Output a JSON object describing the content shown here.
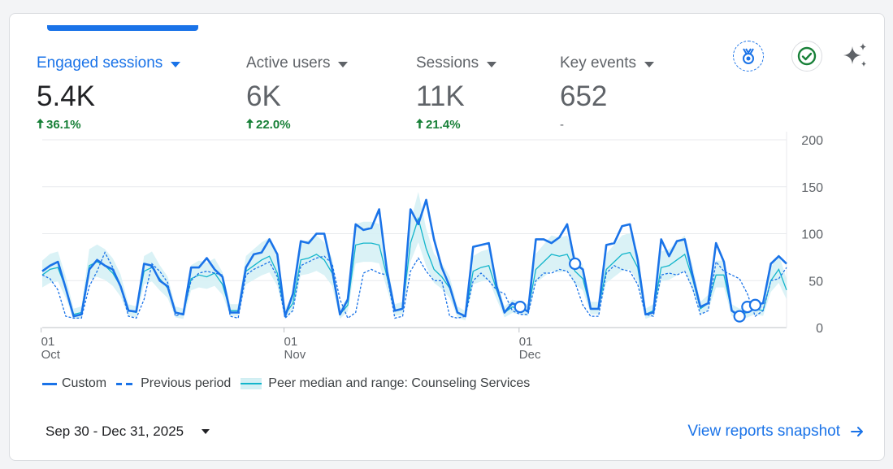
{
  "metrics": [
    {
      "label": "Engaged sessions",
      "value": "5.4K",
      "change": "36.1%",
      "active": true
    },
    {
      "label": "Active users",
      "value": "6K",
      "change": "22.0%",
      "active": false
    },
    {
      "label": "Sessions",
      "value": "11K",
      "change": "21.4%",
      "active": false
    },
    {
      "label": "Key events",
      "value": "652",
      "change": "-",
      "active": false
    }
  ],
  "icons": {
    "badge": "medal-icon",
    "check": "check-circle-icon",
    "sparkle": "sparkle-icon"
  },
  "colors": {
    "primary": "#1a73e8",
    "peer": "#12b5cb",
    "peer_band": "#d4f0f4",
    "positive": "#188038"
  },
  "legend": {
    "custom": "Custom",
    "previous": "Previous period",
    "peer": "Peer median and range: Counseling Services"
  },
  "footer": {
    "date_range": "Sep 30 - Dec 31, 2025",
    "view_link": "View reports snapshot"
  },
  "chart_data": {
    "type": "line",
    "ylim": [
      0,
      200
    ],
    "y_ticks": [
      0,
      50,
      100,
      150,
      200
    ],
    "x_ticks": [
      {
        "index": 1,
        "day": "01",
        "month": "Oct"
      },
      {
        "index": 32,
        "day": "01",
        "month": "Nov"
      },
      {
        "index": 62,
        "day": "01",
        "month": "Dec"
      }
    ],
    "series": [
      {
        "name": "Custom",
        "style": "solid",
        "values": [
          60,
          66,
          70,
          42,
          12,
          14,
          62,
          72,
          66,
          62,
          44,
          18,
          17,
          68,
          66,
          50,
          44,
          16,
          14,
          64,
          64,
          74,
          62,
          54,
          16,
          16,
          64,
          78,
          80,
          94,
          78,
          12,
          36,
          92,
          90,
          100,
          100,
          62,
          14,
          30,
          110,
          104,
          106,
          126,
          60,
          18,
          20,
          126,
          110,
          136,
          94,
          64,
          44,
          16,
          12,
          86,
          88,
          90,
          44,
          16,
          26,
          22,
          17,
          94,
          94,
          90,
          96,
          110,
          68,
          62,
          20,
          20,
          88,
          90,
          108,
          110,
          72,
          14,
          16,
          94,
          76,
          92,
          94,
          56,
          22,
          26,
          90,
          70,
          18,
          12,
          22,
          24,
          26,
          68,
          76,
          68
        ]
      },
      {
        "name": "Previous period",
        "style": "dashed",
        "values": [
          56,
          52,
          40,
          12,
          10,
          10,
          44,
          60,
          80,
          64,
          44,
          12,
          10,
          30,
          68,
          60,
          48,
          12,
          16,
          50,
          58,
          60,
          58,
          56,
          12,
          10,
          56,
          62,
          66,
          70,
          54,
          10,
          18,
          66,
          70,
          74,
          76,
          68,
          30,
          10,
          16,
          58,
          62,
          58,
          56,
          10,
          12,
          60,
          74,
          60,
          50,
          50,
          12,
          10,
          12,
          50,
          58,
          50,
          40,
          36,
          18,
          14,
          14,
          50,
          58,
          58,
          62,
          60,
          48,
          24,
          12,
          12,
          58,
          66,
          62,
          60,
          46,
          14,
          12,
          56,
          58,
          56,
          60,
          42,
          14,
          18,
          70,
          60,
          56,
          52,
          36,
          12,
          18,
          50,
          52,
          64
        ]
      },
      {
        "name": "Peer median",
        "style": "peer",
        "values": [
          56,
          62,
          64,
          42,
          14,
          16,
          66,
          70,
          66,
          58,
          44,
          18,
          16,
          60,
          64,
          52,
          42,
          16,
          14,
          52,
          56,
          54,
          58,
          46,
          18,
          18,
          60,
          66,
          72,
          76,
          58,
          14,
          26,
          72,
          74,
          78,
          72,
          58,
          14,
          24,
          88,
          90,
          90,
          88,
          54,
          18,
          20,
          90,
          116,
          84,
          62,
          54,
          42,
          16,
          12,
          60,
          64,
          66,
          40,
          16,
          22,
          20,
          18,
          62,
          70,
          78,
          76,
          78,
          60,
          52,
          20,
          20,
          62,
          70,
          78,
          80,
          64,
          14,
          18,
          64,
          66,
          72,
          78,
          52,
          20,
          26,
          56,
          56,
          18,
          14,
          16,
          20,
          18,
          50,
          62,
          40
        ]
      }
    ],
    "peer_range_note": "shaded band around peer median"
  }
}
